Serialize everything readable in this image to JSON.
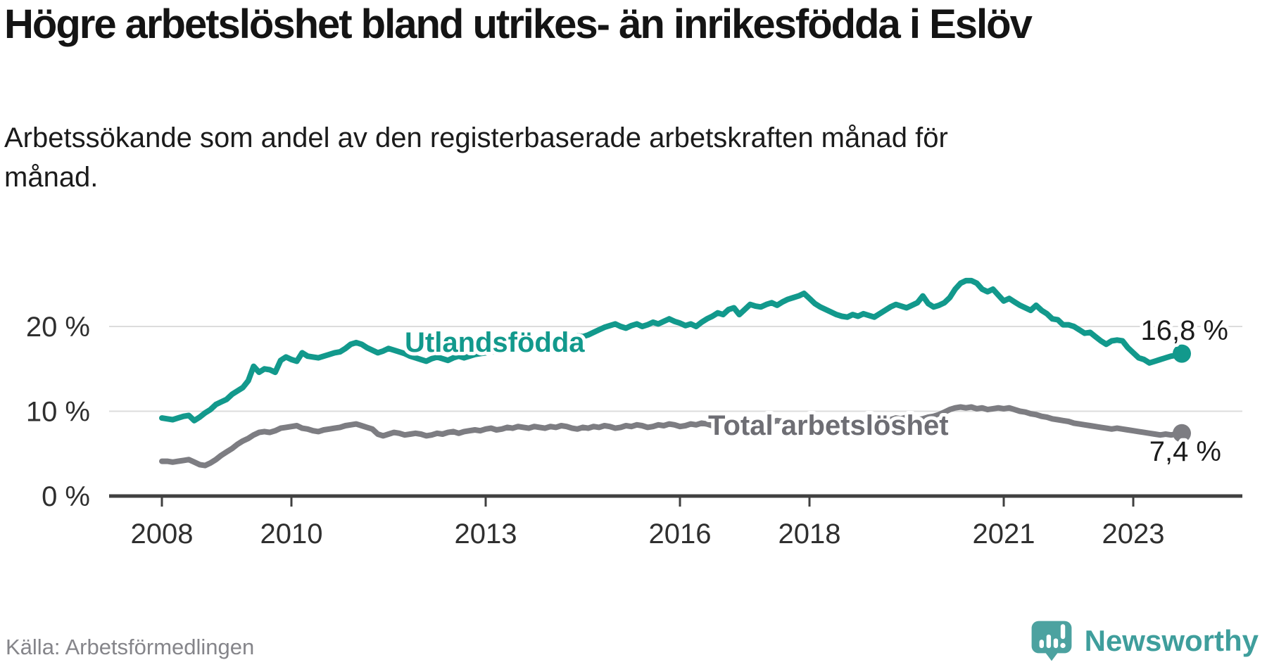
{
  "header": {
    "title": "Högre arbetslöshet bland utrikes- än inrikesfödda i Eslöv",
    "subtitle": "Arbetssökande som andel av den registerbaserade arbetskraften månad för månad."
  },
  "footer": {
    "source": "Källa: Arbetsförmedlingen",
    "brand": "Newsworthy",
    "brand_color": "#3f9e9c",
    "brand_icon": "bar-chart-speech-bubble-icon",
    "brand_icon_color": "#4ca2a0"
  },
  "chart_data": {
    "type": "line",
    "unit": "%",
    "grid": "horizontal-only",
    "legend_position": "inline-labels-on-lines",
    "x_axis": {
      "start_year": 2008,
      "months_total": 190,
      "ticks": [
        "2008",
        "2010",
        "2013",
        "2016",
        "2018",
        "2021",
        "2023"
      ]
    },
    "y_axis": {
      "ylim": [
        0,
        27
      ],
      "ticks": [
        {
          "value": 0,
          "label": "0 %"
        },
        {
          "value": 10,
          "label": "10 %"
        },
        {
          "value": 20,
          "label": "20 %"
        }
      ]
    },
    "series": [
      {
        "key": "utlandsfodda",
        "name": "Utlandsfödda",
        "color": "#12998c",
        "label_color": "#12998c",
        "end_label": "16,8 %",
        "end_value": 16.8,
        "values": [
          9.2,
          9.1,
          9.0,
          9.2,
          9.4,
          9.5,
          8.9,
          9.3,
          9.8,
          10.2,
          10.8,
          11.1,
          11.4,
          12.0,
          12.4,
          12.8,
          13.6,
          15.3,
          14.6,
          15.0,
          14.9,
          14.6,
          16.0,
          16.4,
          16.1,
          15.9,
          16.9,
          16.5,
          16.4,
          16.3,
          16.5,
          16.7,
          16.9,
          17.0,
          17.4,
          17.9,
          18.1,
          17.9,
          17.5,
          17.2,
          16.9,
          17.1,
          17.4,
          17.2,
          17.0,
          16.8,
          16.5,
          16.3,
          16.1,
          15.9,
          16.2,
          16.4,
          16.2,
          16.0,
          16.3,
          16.5,
          16.3,
          16.5,
          16.7,
          16.8,
          16.9,
          17.1,
          17.0,
          17.2,
          17.4,
          17.3,
          17.5,
          17.7,
          17.8,
          18.0,
          17.9,
          18.1,
          18.2,
          18.4,
          18.3,
          18.5,
          18.7,
          18.9,
          18.8,
          19.0,
          19.3,
          19.6,
          19.9,
          20.1,
          20.3,
          20.0,
          19.8,
          20.1,
          20.3,
          20.0,
          20.2,
          20.5,
          20.3,
          20.6,
          20.9,
          20.6,
          20.4,
          20.1,
          20.3,
          20.0,
          20.5,
          20.9,
          21.2,
          21.6,
          21.4,
          22.0,
          22.2,
          21.4,
          22.0,
          22.6,
          22.4,
          22.3,
          22.6,
          22.8,
          22.5,
          22.9,
          23.2,
          23.4,
          23.6,
          23.9,
          23.3,
          22.7,
          22.3,
          22.0,
          21.7,
          21.4,
          21.2,
          21.1,
          21.4,
          21.2,
          21.5,
          21.3,
          21.1,
          21.5,
          21.9,
          22.3,
          22.6,
          22.4,
          22.2,
          22.5,
          22.8,
          23.6,
          22.7,
          22.3,
          22.5,
          22.8,
          23.4,
          24.4,
          25.1,
          25.4,
          25.4,
          25.1,
          24.4,
          24.1,
          24.4,
          23.7,
          23.0,
          23.3,
          22.9,
          22.5,
          22.2,
          21.9,
          22.5,
          21.9,
          21.5,
          20.9,
          20.8,
          20.2,
          20.2,
          20.0,
          19.6,
          19.2,
          19.3,
          18.8,
          18.3,
          17.9,
          18.3,
          18.4,
          18.3,
          17.5,
          16.9,
          16.3,
          16.1,
          15.7,
          15.9,
          16.1,
          16.3,
          16.5,
          16.6,
          16.8
        ]
      },
      {
        "key": "total-arbetsloshet",
        "name": "Total arbetslöshet",
        "color": "#7d7d82",
        "label_color": "#6e6e74",
        "end_label": "7,4 %",
        "end_value": 7.4,
        "values": [
          4.1,
          4.1,
          4.0,
          4.1,
          4.2,
          4.3,
          4.0,
          3.7,
          3.6,
          3.9,
          4.3,
          4.8,
          5.2,
          5.6,
          6.1,
          6.5,
          6.8,
          7.2,
          7.5,
          7.6,
          7.5,
          7.7,
          8.0,
          8.1,
          8.2,
          8.3,
          8.0,
          7.9,
          7.7,
          7.6,
          7.8,
          7.9,
          8.0,
          8.1,
          8.3,
          8.4,
          8.5,
          8.3,
          8.1,
          7.9,
          7.3,
          7.1,
          7.3,
          7.5,
          7.4,
          7.2,
          7.3,
          7.4,
          7.3,
          7.1,
          7.2,
          7.4,
          7.3,
          7.5,
          7.6,
          7.4,
          7.6,
          7.7,
          7.8,
          7.7,
          7.9,
          8.0,
          7.8,
          7.9,
          8.1,
          8.0,
          8.2,
          8.1,
          8.0,
          8.2,
          8.1,
          8.0,
          8.2,
          8.1,
          8.3,
          8.2,
          8.0,
          7.9,
          8.1,
          8.0,
          8.2,
          8.1,
          8.3,
          8.2,
          8.0,
          8.1,
          8.3,
          8.2,
          8.4,
          8.3,
          8.1,
          8.2,
          8.4,
          8.3,
          8.5,
          8.4,
          8.2,
          8.3,
          8.5,
          8.4,
          8.6,
          8.5,
          8.3,
          8.4,
          8.6,
          8.5,
          8.7,
          8.6,
          8.8,
          8.7,
          8.5,
          8.6,
          8.8,
          8.7,
          8.9,
          8.8,
          8.6,
          8.7,
          8.9,
          8.8,
          8.6,
          8.5,
          8.7,
          8.6,
          8.4,
          8.5,
          8.7,
          8.6,
          8.8,
          8.7,
          8.9,
          8.8,
          9.0,
          8.9,
          9.1,
          9.0,
          9.2,
          9.1,
          9.3,
          9.2,
          9.0,
          9.1,
          9.3,
          9.4,
          9.6,
          9.9,
          10.2,
          10.4,
          10.5,
          10.4,
          10.5,
          10.3,
          10.4,
          10.2,
          10.3,
          10.4,
          10.3,
          10.4,
          10.2,
          10.0,
          9.9,
          9.7,
          9.6,
          9.4,
          9.3,
          9.1,
          9.0,
          8.9,
          8.8,
          8.6,
          8.5,
          8.4,
          8.3,
          8.2,
          8.1,
          8.0,
          7.9,
          8.0,
          7.9,
          7.8,
          7.7,
          7.6,
          7.5,
          7.4,
          7.3,
          7.2,
          7.3,
          7.2,
          7.3,
          7.4
        ]
      }
    ]
  }
}
